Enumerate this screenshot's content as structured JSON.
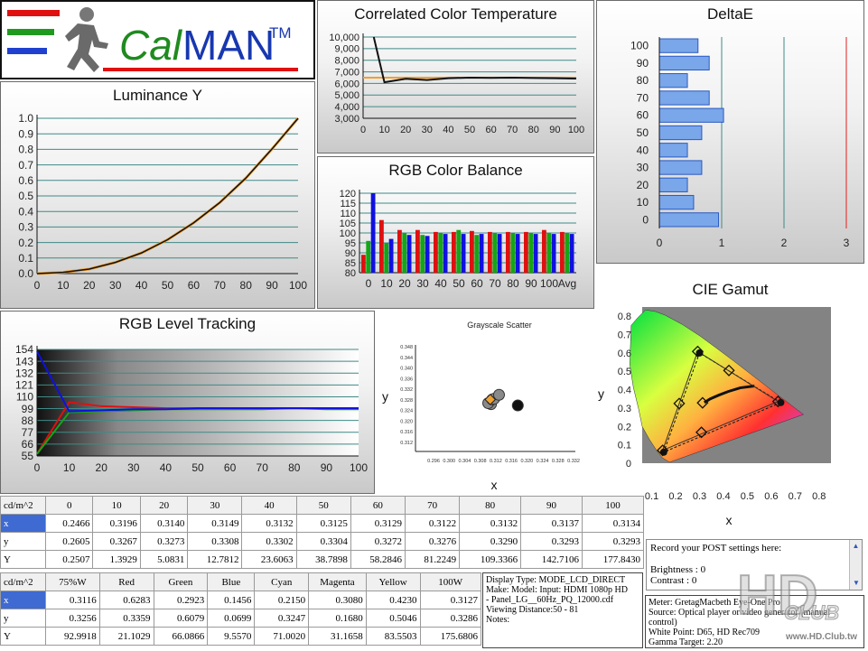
{
  "logo": {
    "text_cal": "Cal",
    "text_man": "MAN",
    "tm": "TM"
  },
  "cct": {
    "title": "Correlated Color Temperature",
    "y_ticks": [
      "10,000",
      "9,000",
      "8,000",
      "7,000",
      "6,000",
      "5,000",
      "4,000",
      "3,000"
    ],
    "x_ticks": [
      "0",
      "10",
      "20",
      "30",
      "40",
      "50",
      "60",
      "70",
      "80",
      "90",
      "100"
    ],
    "chart_data": {
      "type": "line",
      "x": [
        5,
        10,
        20,
        30,
        40,
        50,
        60,
        70,
        80,
        90,
        100
      ],
      "series": [
        {
          "values": [
            10000,
            6100,
            6400,
            6300,
            6450,
            6500,
            6480,
            6500,
            6470,
            6450,
            6420
          ]
        }
      ],
      "target": 6500,
      "ylim": [
        3000,
        10000
      ]
    }
  },
  "deltae": {
    "title": "DeltaE",
    "y_ticks": [
      "100",
      "90",
      "80",
      "70",
      "60",
      "50",
      "40",
      "30",
      "20",
      "10",
      "0"
    ],
    "x_ticks": [
      "0",
      "1",
      "2",
      "3"
    ],
    "chart_data": {
      "type": "bar",
      "orientation": "horizontal",
      "categories": [
        "100",
        "90",
        "80",
        "70",
        "60",
        "50",
        "40",
        "30",
        "20",
        "10",
        "0"
      ],
      "values": [
        0.62,
        0.8,
        0.45,
        0.8,
        1.03,
        0.68,
        0.45,
        0.68,
        0.45,
        0.55,
        0.95
      ],
      "xlim": [
        0,
        3
      ]
    }
  },
  "luminance": {
    "title": "Luminance Y",
    "y_ticks": [
      "1.0",
      "0.9",
      "0.8",
      "0.7",
      "0.6",
      "0.5",
      "0.4",
      "0.3",
      "0.2",
      "0.1",
      "0.0"
    ],
    "x_ticks": [
      "0",
      "10",
      "20",
      "30",
      "40",
      "50",
      "60",
      "70",
      "80",
      "90",
      "100"
    ],
    "chart_data": {
      "type": "line",
      "x": [
        10,
        20,
        30,
        40,
        50,
        60,
        70,
        80,
        90,
        100
      ],
      "series": [
        {
          "values": [
            0.008,
            0.029,
            0.072,
            0.133,
            0.218,
            0.327,
            0.457,
            0.615,
            0.802,
            1.0
          ]
        }
      ],
      "ylim": [
        0,
        1
      ]
    }
  },
  "rgb_balance": {
    "title": "RGB Color Balance",
    "y_ticks": [
      "120",
      "115",
      "110",
      "105",
      "100",
      "95",
      "90",
      "85",
      "80"
    ],
    "x_ticks": [
      "0",
      "10",
      "20",
      "30",
      "40",
      "50",
      "60",
      "70",
      "80",
      "90",
      "100",
      "Avg"
    ],
    "chart_data": {
      "type": "bar",
      "categories": [
        "0",
        "10",
        "20",
        "30",
        "40",
        "50",
        "60",
        "70",
        "80",
        "90",
        "100",
        "Avg"
      ],
      "series": [
        {
          "values": [
            89,
            106.5,
            101.5,
            101.5,
            100.5,
            100.5,
            101,
            100.5,
            100.5,
            100.5,
            101.5,
            100.5
          ]
        },
        {
          "values": [
            96,
            95,
            100,
            99,
            100,
            101.5,
            99,
            100,
            100,
            100,
            100,
            100
          ]
        },
        {
          "values": [
            120,
            97,
            99,
            98.5,
            99.5,
            99.5,
            99.5,
            99.5,
            99.5,
            99.5,
            99.5,
            99.5
          ]
        }
      ],
      "ylim": [
        80,
        120
      ]
    }
  },
  "rgb_tracking": {
    "title": "RGB Level Tracking",
    "y_ticks": [
      "154",
      "143",
      "132",
      "121",
      "110",
      "99",
      "88",
      "77",
      "66",
      "55"
    ],
    "x_ticks": [
      "0",
      "10",
      "20",
      "30",
      "40",
      "50",
      "60",
      "70",
      "80",
      "90",
      "100"
    ],
    "chart_data": {
      "type": "line",
      "x": [
        0,
        10,
        20,
        30,
        40,
        50,
        60,
        70,
        80,
        90,
        100
      ],
      "series": [
        {
          "values": [
            54,
            105,
            101,
            100,
            99,
            99,
            99,
            99,
            99,
            99,
            99
          ]
        },
        {
          "values": [
            54,
            95,
            96,
            97,
            98,
            98,
            98,
            98,
            99,
            98,
            98
          ]
        },
        {
          "values": [
            155,
            96,
            97,
            98,
            98,
            99,
            99,
            99,
            99,
            99,
            99
          ]
        }
      ],
      "ylim": [
        52,
        157
      ]
    }
  },
  "scatter": {
    "title": "Grayscale Scatter",
    "xlabel": "x",
    "ylabel": "y",
    "x_ticks": [
      "0.296",
      "0.300",
      "0.304",
      "0.308",
      "0.312",
      "0.316",
      "0.320",
      "0.324",
      "0.328",
      "0.332"
    ],
    "y_ticks": [
      "0.348",
      "0.344",
      "0.340",
      "0.336",
      "0.332",
      "0.328",
      "0.324",
      "0.320",
      "0.316",
      "0.312"
    ],
    "chart_data": {
      "type": "scatter",
      "xlim": [
        0.294,
        0.334
      ],
      "ylim": [
        0.309,
        0.35
      ],
      "points": [
        [
          0.3129,
          0.3272
        ],
        [
          0.3122,
          0.3276
        ],
        [
          0.3132,
          0.329
        ],
        [
          0.3137,
          0.3293
        ],
        [
          0.3149,
          0.3308
        ],
        [
          0.3196,
          0.3267
        ]
      ],
      "target": [
        0.3127,
        0.329
      ]
    }
  },
  "cie": {
    "title": "CIE Gamut",
    "xlabel": "x",
    "ylabel": "y",
    "x_ticks": [
      "0.1",
      "0.2",
      "0.3",
      "0.4",
      "0.5",
      "0.6",
      "0.7",
      "0.8"
    ],
    "y_ticks": [
      "0.8",
      "0.7",
      "0.6",
      "0.5",
      "0.4",
      "0.3",
      "0.2",
      "0.1",
      "0"
    ],
    "chart_data": {
      "type": "scatter",
      "xlim": [
        0.06,
        0.85
      ],
      "ylim": [
        0,
        0.85
      ],
      "measured": [
        [
          0.6283,
          0.3359
        ],
        [
          0.2923,
          0.6079
        ],
        [
          0.1456,
          0.0699
        ],
        [
          0.215,
          0.3247
        ],
        [
          0.308,
          0.168
        ],
        [
          0.423,
          0.5046
        ],
        [
          0.3127,
          0.3286
        ]
      ],
      "target": [
        [
          0.64,
          0.33
        ],
        [
          0.3,
          0.6
        ],
        [
          0.15,
          0.06
        ]
      ]
    }
  },
  "table1": {
    "corner": "cd/m^2",
    "headers": [
      "0",
      "10",
      "20",
      "30",
      "40",
      "50",
      "60",
      "70",
      "80",
      "90",
      "100"
    ],
    "rows": [
      {
        "label": "x",
        "cells": [
          "0.2466",
          "0.3196",
          "0.3140",
          "0.3149",
          "0.3132",
          "0.3125",
          "0.3129",
          "0.3122",
          "0.3132",
          "0.3137",
          "0.3134"
        ]
      },
      {
        "label": "y",
        "cells": [
          "0.2605",
          "0.3267",
          "0.3273",
          "0.3308",
          "0.3302",
          "0.3304",
          "0.3272",
          "0.3276",
          "0.3290",
          "0.3293",
          "0.3293"
        ]
      },
      {
        "label": "Y",
        "cells": [
          "0.2507",
          "1.3929",
          "5.0831",
          "12.7812",
          "23.6063",
          "38.7898",
          "58.2846",
          "81.2249",
          "109.3366",
          "142.7106",
          "177.8430"
        ]
      }
    ]
  },
  "table2": {
    "corner": "cd/m^2",
    "headers": [
      "75%W",
      "Red",
      "Green",
      "Blue",
      "Cyan",
      "Magenta",
      "Yellow",
      "100W"
    ],
    "rows": [
      {
        "label": "x",
        "cells": [
          "0.3116",
          "0.6283",
          "0.2923",
          "0.1456",
          "0.2150",
          "0.3080",
          "0.4230",
          "0.3127"
        ]
      },
      {
        "label": "y",
        "cells": [
          "0.3256",
          "0.3359",
          "0.6079",
          "0.0699",
          "0.3247",
          "0.1680",
          "0.5046",
          "0.3286"
        ]
      },
      {
        "label": "Y",
        "cells": [
          "92.9918",
          "21.1029",
          "66.0866",
          "9.5570",
          "71.0020",
          "31.1658",
          "83.5503",
          "175.6806"
        ]
      }
    ]
  },
  "display_info": {
    "line1": "Display Type: MODE_LCD_DIRECT",
    "line2": "Make: Model: Input: HDMI 1080p HD",
    "line3": "-    Panel_LG__60Hz_PQ_12000.cdf",
    "line4": "Viewing Distance:50 - 81",
    "line5": "Notes:"
  },
  "post": {
    "prompt": "Record your POST settings here:",
    "brightness": "Brightness  : 0",
    "contrast": "Contrast    : 0"
  },
  "meter_info": {
    "line1": "Meter: GretagMacbeth Eye-One Pro",
    "line2": "Source: Optical player or video generator (manual",
    "line3": "control)",
    "line4": "White Point: D65, HD Rec709",
    "line5": "Gamma Target: 2.20"
  },
  "watermark": {
    "big": "HD",
    "sub": "CLUB",
    "url": "www.HD.Club.tw"
  },
  "colors": {
    "red": "#e01010",
    "green": "#14a614",
    "blue": "#1010e0",
    "grid": "#3f8a86",
    "orange": "#f0a030",
    "selected": "#3e6ad1"
  }
}
